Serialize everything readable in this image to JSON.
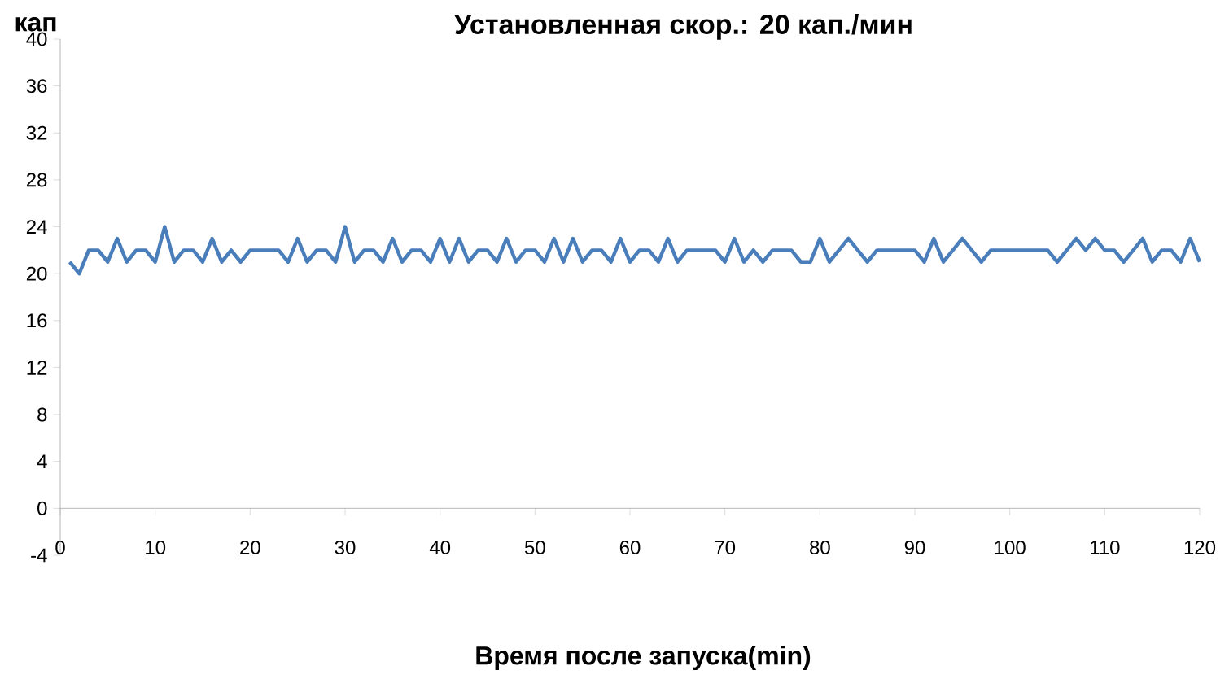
{
  "chart_data": {
    "type": "line",
    "title": "Установленная скор.: 20 кап./мин",
    "ylabel": "кап",
    "xlabel": "Время после запуска(min)",
    "xlim": [
      0,
      120
    ],
    "xticks": [
      0,
      10,
      20,
      30,
      40,
      50,
      60,
      70,
      80,
      90,
      100,
      110,
      120
    ],
    "ylim": [
      -4,
      40
    ],
    "yticks": [
      -4,
      0,
      4,
      8,
      12,
      16,
      20,
      24,
      28,
      32,
      36,
      40
    ],
    "grid": false,
    "marker": "none",
    "line_style": "solid",
    "x": [
      1,
      2,
      3,
      4,
      5,
      6,
      7,
      8,
      9,
      10,
      11,
      12,
      13,
      14,
      15,
      16,
      17,
      18,
      19,
      20,
      21,
      22,
      23,
      24,
      25,
      26,
      27,
      28,
      29,
      30,
      31,
      32,
      33,
      34,
      35,
      36,
      37,
      38,
      39,
      40,
      41,
      42,
      43,
      44,
      45,
      46,
      47,
      48,
      49,
      50,
      51,
      52,
      53,
      54,
      55,
      56,
      57,
      58,
      59,
      60,
      61,
      62,
      63,
      64,
      65,
      66,
      67,
      68,
      69,
      70,
      71,
      72,
      73,
      74,
      75,
      76,
      77,
      78,
      79,
      80,
      81,
      82,
      83,
      84,
      85,
      86,
      87,
      88,
      89,
      90,
      91,
      92,
      93,
      94,
      95,
      96,
      97,
      98,
      99,
      100,
      101,
      102,
      103,
      104,
      105,
      106,
      107,
      108,
      109,
      110,
      111,
      112,
      113,
      114,
      115,
      116,
      117,
      118,
      119,
      120
    ],
    "series": [
      {
        "color": "#4a7ebb",
        "values": [
          21,
          20,
          22,
          22,
          21,
          23,
          21,
          22,
          22,
          21,
          24,
          21,
          22,
          22,
          21,
          23,
          21,
          22,
          21,
          22,
          22,
          22,
          22,
          21,
          23,
          21,
          22,
          22,
          21,
          24,
          21,
          22,
          22,
          21,
          23,
          21,
          22,
          22,
          21,
          23,
          21,
          23,
          21,
          22,
          22,
          21,
          23,
          21,
          22,
          22,
          21,
          23,
          21,
          23,
          21,
          22,
          22,
          21,
          23,
          21,
          22,
          22,
          21,
          23,
          21,
          22,
          22,
          22,
          22,
          21,
          23,
          21,
          22,
          21,
          22,
          22,
          22,
          21,
          21,
          23,
          21,
          22,
          23,
          22,
          21,
          22,
          22,
          22,
          22,
          22,
          21,
          23,
          21,
          22,
          23,
          22,
          21,
          22,
          22,
          22,
          22,
          22,
          22,
          22,
          21,
          22,
          23,
          22,
          23,
          22,
          22,
          21,
          22,
          23,
          21,
          22,
          22,
          21,
          23,
          21
        ]
      }
    ]
  }
}
